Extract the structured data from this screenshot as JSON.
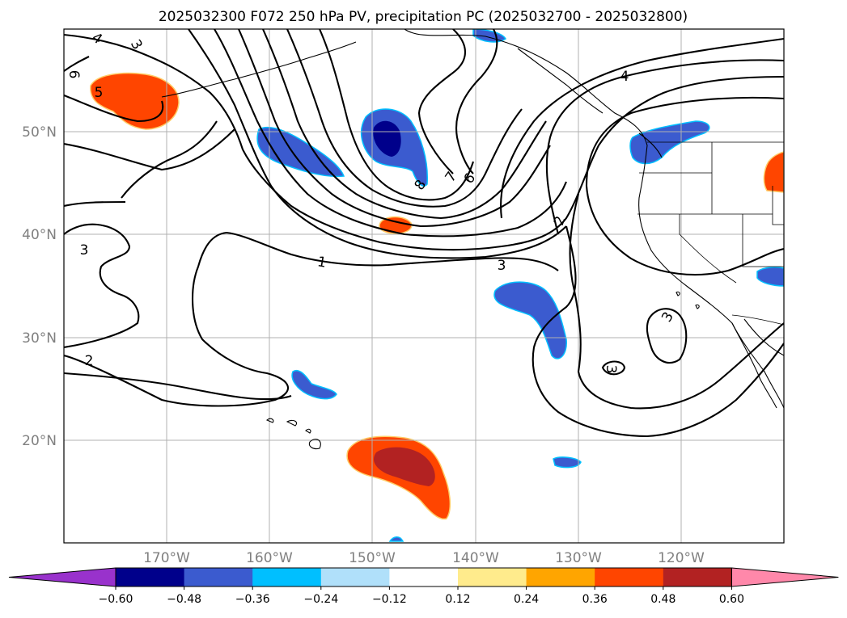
{
  "title": "2025032300 F072 250 hPa PV, precipitation PC (2025032700 - 2025032800)",
  "lon_labels": [
    "170°W",
    "160°W",
    "150°W",
    "140°W",
    "130°W",
    "120°W"
  ],
  "lat_labels": [
    "50°N",
    "40°N",
    "30°N",
    "20°N"
  ],
  "colorbar": {
    "labels": [
      "−0.60",
      "−0.48",
      "−0.36",
      "−0.24",
      "−0.12",
      "0.12",
      "0.24",
      "0.36",
      "0.48",
      "0.60"
    ],
    "colors": [
      "#9932cc",
      "#00008b",
      "#3b5bcf",
      "#00bfff",
      "#b0e0fa",
      "#ffffff",
      "#ffeb8c",
      "#ffa500",
      "#ff4500",
      "#b22222",
      "#ff88aa"
    ]
  },
  "contour_labels": [
    "4",
    "3",
    "5",
    "6",
    "3",
    "1",
    "3",
    "2",
    "8",
    "7",
    "6",
    "2",
    "3",
    "4",
    "3",
    "3",
    "2",
    "6"
  ],
  "chart_data": {
    "type": "heatmap",
    "title": "2025032300 F072 250 hPa PV, precipitation PC (2025032700 - 2025032800)",
    "extent": {
      "lon": [
        -180,
        -110
      ],
      "lat": [
        10,
        60
      ]
    },
    "projection": "PlateCarree",
    "grid": true,
    "contour_field": "250 hPa PV",
    "filled_field": "precipitation PC",
    "colorbar_levels": [
      -0.6,
      -0.48,
      -0.36,
      -0.24,
      -0.12,
      0.12,
      0.24,
      0.36,
      0.48,
      0.6
    ],
    "colorbar_extend": "both",
    "contour_levels_labeled": [
      1,
      2,
      3,
      4,
      5,
      6,
      7,
      8
    ]
  }
}
